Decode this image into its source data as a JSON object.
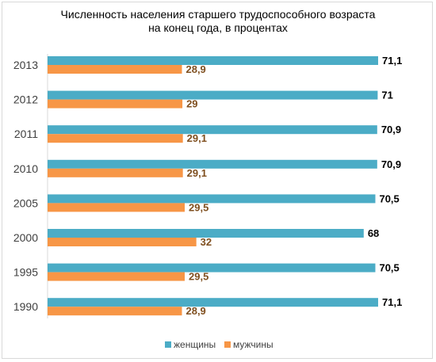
{
  "chart_data": {
    "type": "bar",
    "orientation": "horizontal",
    "title": "Численность  населения  старшего трудоспособного  возраста\nна конец года, в процентах",
    "categories": [
      "2013",
      "2012",
      "2011",
      "2010",
      "2005",
      "2000",
      "1995",
      "1990"
    ],
    "series": [
      {
        "name": "женщины",
        "color": "#4bacc6",
        "label_color": "#000000",
        "values": [
          71.1,
          71,
          70.9,
          70.9,
          70.5,
          68,
          70.5,
          71.1
        ],
        "labels": [
          "71,1",
          "71",
          "70,9",
          "70,9",
          "70,5",
          "68",
          "70,5",
          "71,1"
        ]
      },
      {
        "name": "мужчины",
        "color": "#f79646",
        "label_color": "#7f4f1f",
        "values": [
          28.9,
          29,
          29.1,
          29.1,
          29.5,
          32,
          29.5,
          28.9
        ],
        "labels": [
          "28,9",
          "29",
          "29,1",
          "29,1",
          "29,5",
          "32",
          "29,5",
          "28,9"
        ]
      }
    ],
    "xlim": [
      0,
      71.1
    ],
    "grid": false,
    "legend_position": "bottom"
  }
}
